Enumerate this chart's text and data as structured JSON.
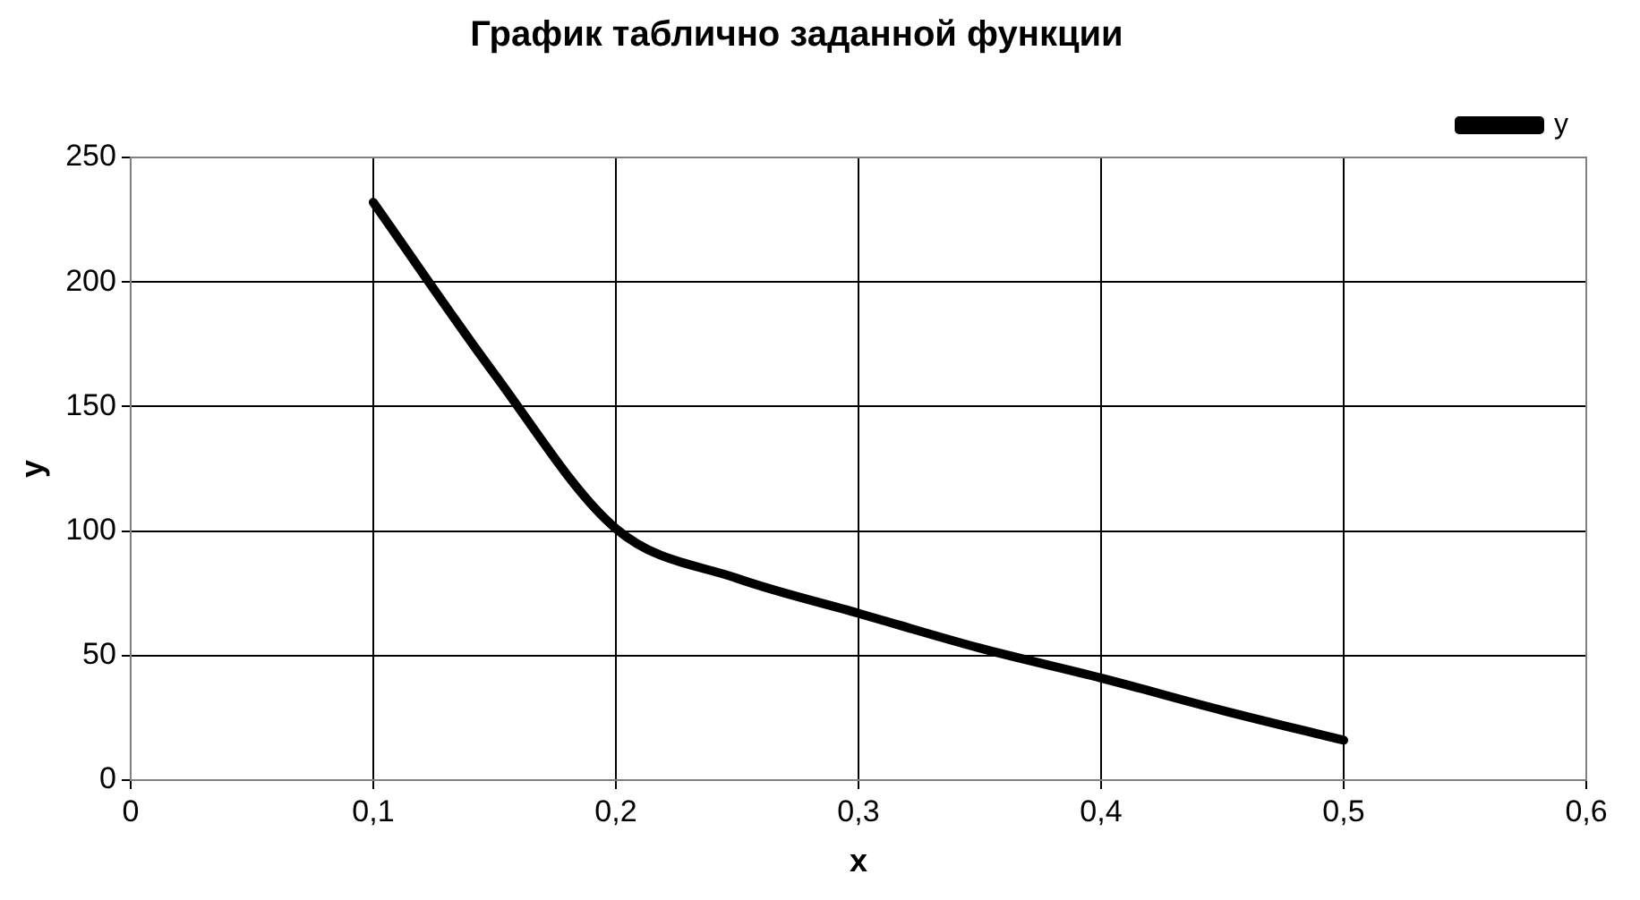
{
  "chart_data": {
    "type": "line",
    "title": "График таблично заданной функции",
    "xlabel": "x",
    "ylabel": "y",
    "x": [
      0.1,
      0.15,
      0.2,
      0.25,
      0.3,
      0.35,
      0.4,
      0.45,
      0.5
    ],
    "series": [
      {
        "name": "y",
        "color": "#000000",
        "values": [
          232,
          163,
          101,
          81,
          67,
          53,
          41,
          28,
          16
        ]
      }
    ],
    "xlim": [
      0,
      0.6
    ],
    "xticks": [
      {
        "value": 0,
        "label": "0"
      },
      {
        "value": 0.1,
        "label": "0,1"
      },
      {
        "value": 0.2,
        "label": "0,2"
      },
      {
        "value": 0.3,
        "label": "0,3"
      },
      {
        "value": 0.4,
        "label": "0,4"
      },
      {
        "value": 0.5,
        "label": "0,5"
      },
      {
        "value": 0.6,
        "label": "0,6"
      }
    ],
    "ylim": [
      0,
      250
    ],
    "yticks": [
      0,
      50,
      100,
      150,
      200,
      250
    ],
    "grid": true,
    "legend": "top right",
    "marker": "none",
    "line_style": "solid"
  }
}
